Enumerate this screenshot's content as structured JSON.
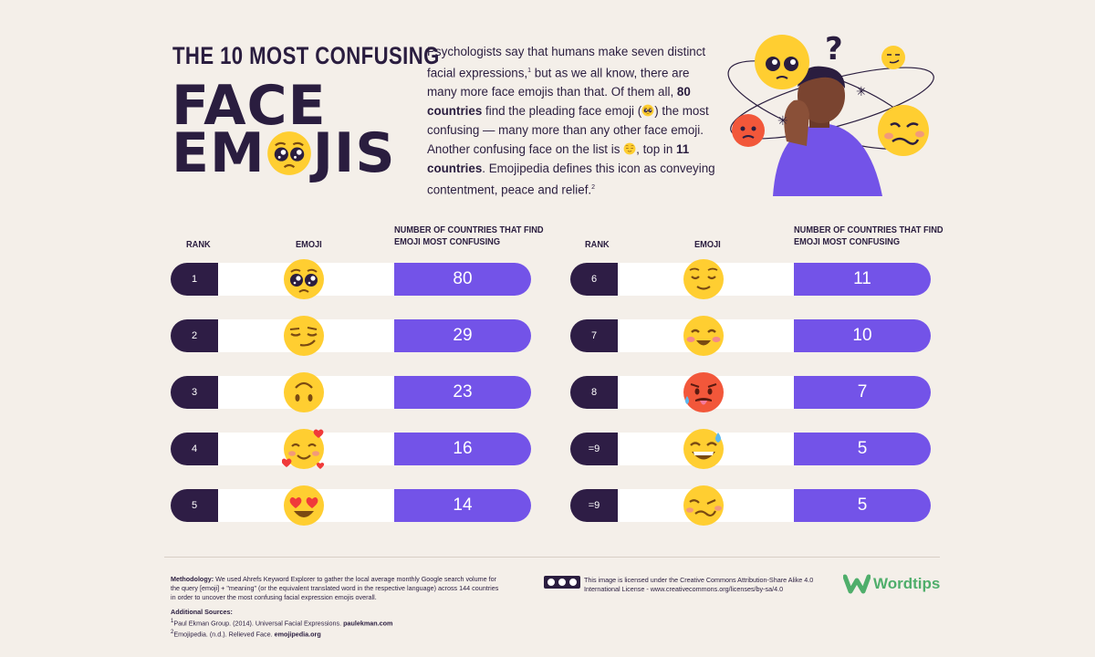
{
  "header": {
    "title_line1": "THE 10 MOST CONFUSING",
    "title_line2": "FACE",
    "title_line3a": "EM",
    "title_line3b": "JIS"
  },
  "intro": {
    "p1": "Psychologists say that humans make seven distinct facial expressions,",
    "sup1": "1",
    "p2": " but as we all know, there are many more face emojis than that. Of them all, ",
    "b1": "80 countries",
    "p3": " find the pleading face emoji (",
    "p4": ") the most confusing — many more than any other face emoji. Another confusing face on the list is ",
    "p5": ", top in ",
    "b2": "11 countries",
    "p6": ". Emojipedia defines this icon as conveying contentment, peace and relief.",
    "sup2": "2"
  },
  "chart_data": {
    "type": "table",
    "columns": [
      "RANK",
      "EMOJI",
      "NUMBER OF COUNTRIES THAT FIND EMOJI MOST CONFUSING"
    ],
    "rows": [
      {
        "rank": "1",
        "emoji": "pleading-face",
        "value": 80
      },
      {
        "rank": "2",
        "emoji": "smirking-face",
        "value": 29
      },
      {
        "rank": "3",
        "emoji": "upside-down-face",
        "value": 23
      },
      {
        "rank": "4",
        "emoji": "smiling-face-with-hearts",
        "value": 16
      },
      {
        "rank": "5",
        "emoji": "heart-eyes-face",
        "value": 14
      },
      {
        "rank": "6",
        "emoji": "relieved-face",
        "value": 11
      },
      {
        "rank": "7",
        "emoji": "smiling-face-with-smiling-eyes",
        "value": 10
      },
      {
        "rank": "8",
        "emoji": "hot-face",
        "value": 7
      },
      {
        "rank": "=9",
        "emoji": "grinning-face-with-sweat",
        "value": 5
      },
      {
        "rank": "=9",
        "emoji": "woozy-face",
        "value": 5
      }
    ]
  },
  "table_headers": {
    "rank": "RANK",
    "emoji": "EMOJI",
    "count_line1": "NUMBER OF COUNTRIES THAT FIND",
    "count_line2": "EMOJI MOST CONFUSING"
  },
  "footer": {
    "methodology_label": "Methodology:",
    "methodology_text": " We used Ahrefs Keyword Explorer to gather the local average monthly Google search volume for the query [emoji] + \"meaning\" (or the equivalent translated word in the respective language) across 144 countries in order to uncover the most confusing facial expression emojis overall.",
    "sources_label": "Additional Sources:",
    "source1_sup": "1",
    "source1": "Paul Ekman Group. (2014). Universal Facial Expressions. ",
    "source1_link": "paulekman.com",
    "source2_sup": "2",
    "source2": "Emojipedia. (n.d.). Relieved Face. ",
    "source2_link": "emojipedia.org",
    "license": "This image is licensed under the Creative Commons Attribution-Share Alike 4.0 International License - www.creativecommons.org/licenses/by-sa/4.0",
    "brand": "Wordtips"
  },
  "colors": {
    "background": "#f4efe9",
    "navy": "#2e1d45",
    "purple": "#7353e8",
    "emoji_yellow": "#ffce31",
    "brand_green": "#4fae6b"
  }
}
